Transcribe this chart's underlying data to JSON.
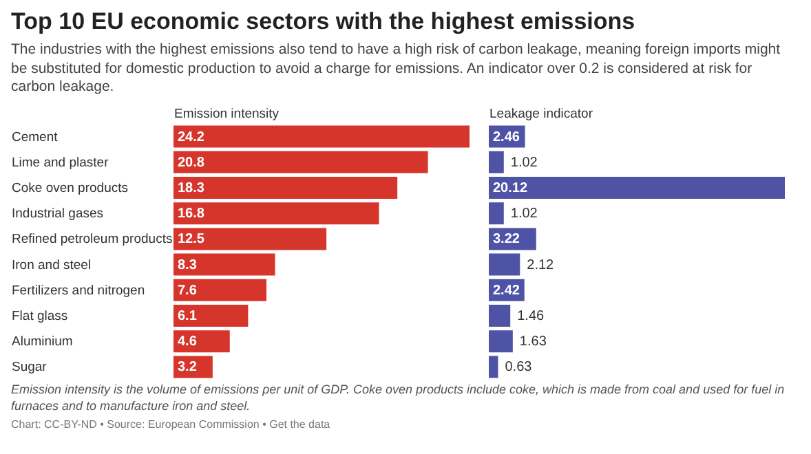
{
  "chart_data": [
    {
      "type": "bar",
      "orientation": "horizontal",
      "title": "Top 10 EU economic sectors with the highest emissions",
      "subtitle": "The industries with the highest emissions also tend to have a high risk of carbon leakage, meaning foreign imports might be substituted for domestic production to avoid a charge for emissions. An indicator over 0.2 is considered at risk for carbon leakage.",
      "xlabel": "Emission intensity",
      "categories": [
        "Cement",
        "Lime and plaster",
        "Coke oven products",
        "Industrial gases",
        "Refined petroleum products",
        "Iron and steel",
        "Fertilizers and nitrogen",
        "Flat glass",
        "Aluminium",
        "Sugar"
      ],
      "values": [
        24.2,
        20.8,
        18.3,
        16.8,
        12.5,
        8.3,
        7.6,
        6.1,
        4.6,
        3.2
      ],
      "color": "#d5352b",
      "data_labels": true,
      "tick_labels": "y",
      "grid": false,
      "annotations": [
        "Emission intensity is the volume of emissions per unit of GDP. Coke oven products include coke, which is made from coal and used for fuel in furnaces and to manufacture iron and steel.",
        "Chart: CC-BY-ND • Source: European Commission • Get the data"
      ]
    },
    {
      "type": "bar",
      "orientation": "horizontal",
      "xlabel": "Leakage indicator",
      "categories": [
        null,
        null,
        null,
        null,
        null,
        null,
        null,
        null,
        null,
        null
      ],
      "values": [
        2.46,
        1.02,
        20.12,
        1.02,
        3.22,
        2.12,
        2.42,
        1.46,
        1.63,
        0.63
      ],
      "color": "#4f53a6",
      "data_labels": true,
      "tick_labels": false,
      "grid": false
    }
  ]
}
